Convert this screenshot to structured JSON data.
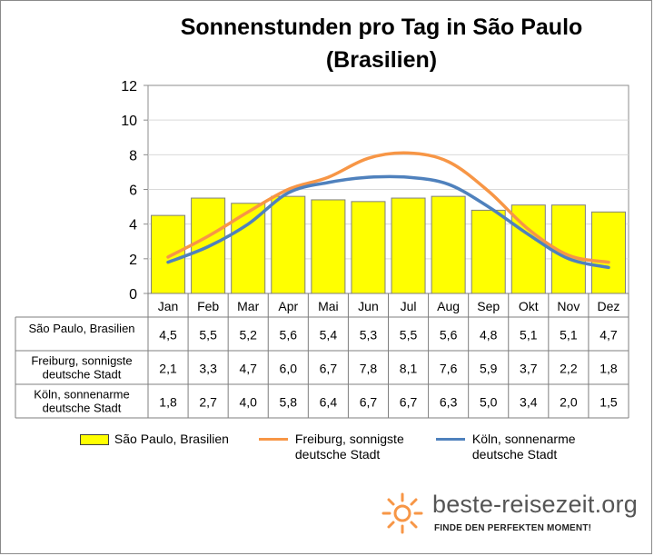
{
  "chart_data": {
    "type": "bar",
    "title": "Sonnenstunden pro Tag in São Paulo",
    "subtitle": "(Brasilien)",
    "categories": [
      "Jan",
      "Feb",
      "Mar",
      "Apr",
      "Mai",
      "Jun",
      "Jul",
      "Aug",
      "Sep",
      "Okt",
      "Nov",
      "Dez"
    ],
    "series": [
      {
        "name": "São Paulo, Brasilien",
        "type": "bar",
        "color": "#ffff00",
        "values": [
          4.5,
          5.5,
          5.2,
          5.6,
          5.4,
          5.3,
          5.5,
          5.6,
          4.8,
          5.1,
          5.1,
          4.7
        ],
        "labels": [
          "4,5",
          "5,5",
          "5,2",
          "5,6",
          "5,4",
          "5,3",
          "5,5",
          "5,6",
          "4,8",
          "5,1",
          "5,1",
          "4,7"
        ]
      },
      {
        "name": "Freiburg, sonnigste deutsche Stadt",
        "type": "line",
        "color": "#f79646",
        "values": [
          2.1,
          3.3,
          4.7,
          6.0,
          6.7,
          7.8,
          8.1,
          7.6,
          5.9,
          3.7,
          2.2,
          1.8
        ],
        "labels": [
          "2,1",
          "3,3",
          "4,7",
          "6,0",
          "6,7",
          "7,8",
          "8,1",
          "7,6",
          "5,9",
          "3,7",
          "2,2",
          "1,8"
        ]
      },
      {
        "name": "Köln, sonnenarme deutsche Stadt",
        "type": "line",
        "color": "#4f81bd",
        "values": [
          1.8,
          2.7,
          4.0,
          5.8,
          6.4,
          6.7,
          6.7,
          6.3,
          5.0,
          3.4,
          2.0,
          1.5
        ],
        "labels": [
          "1,8",
          "2,7",
          "4,0",
          "5,8",
          "6,4",
          "6,7",
          "6,7",
          "6,3",
          "5,0",
          "3,4",
          "2,0",
          "1,5"
        ]
      }
    ],
    "row_labels": [
      [
        "São Paulo, Brasilien"
      ],
      [
        "Freiburg, sonnigste",
        "deutsche Stadt"
      ],
      [
        "Köln, sonnenarme",
        "deutsche Stadt"
      ]
    ],
    "legend": [
      {
        "lines": [
          "São Paulo, Brasilien"
        ]
      },
      {
        "lines": [
          "Freiburg, sonnigste",
          "deutsche Stadt"
        ]
      },
      {
        "lines": [
          "Köln, sonnenarme",
          "deutsche Stadt"
        ]
      }
    ],
    "yticks": [
      "0",
      "2",
      "4",
      "6",
      "8",
      "10",
      "12"
    ],
    "ylim": [
      0,
      12
    ],
    "grid": true,
    "legend_position": "bottom",
    "data_table": true
  },
  "brand": {
    "name": "beste-reisezeit.org",
    "tagline": "FINDE DEN PERFEKTEN MOMENT!",
    "accent": "#f79646"
  }
}
